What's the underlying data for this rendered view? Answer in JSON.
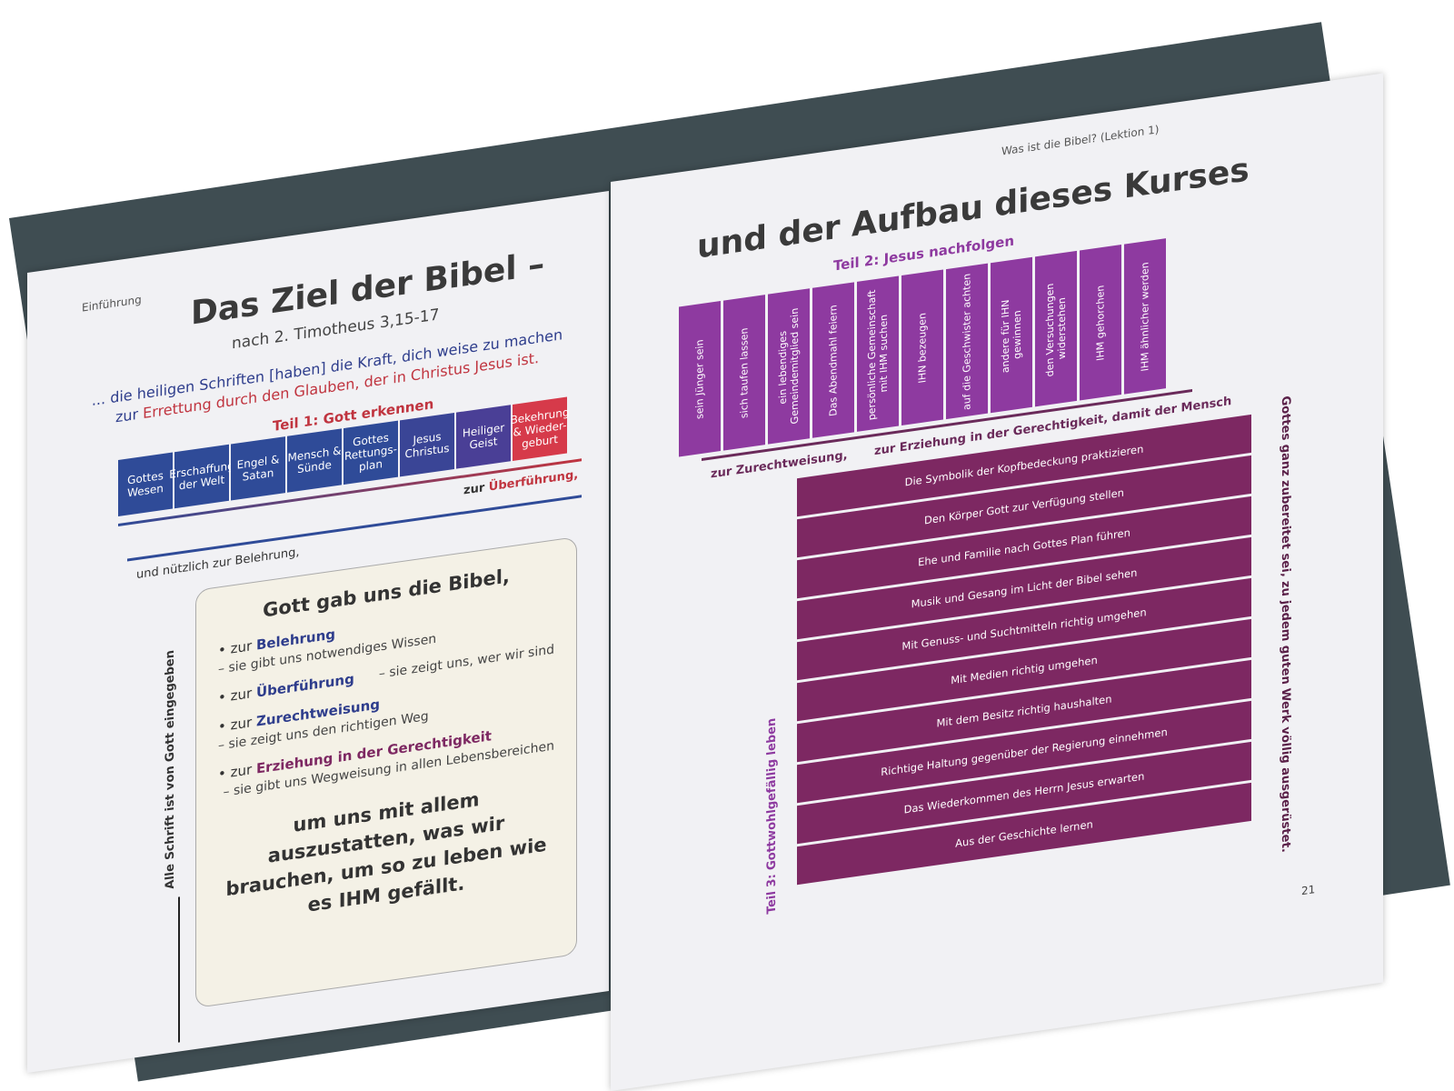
{
  "left_page": {
    "header": "Einführung",
    "title": "Das Ziel der Bibel –",
    "subtitle": "nach 2. Timotheus 3,15-17",
    "quote_line1": "... die heiligen Schriften [haben] die Kraft, dich weise zu machen",
    "quote_line2_prefix": "zur ",
    "quote_line2_red": "Errettung durch den Glauben, der in Christus Jesus ist.",
    "teil1": "Teil 1: Gott erkennen",
    "blocks": [
      "Gottes Wesen",
      "Erschaffung der Welt",
      "Engel & Satan",
      "Mensch & Sünde",
      "Gottes Rettungs-plan",
      "Jesus Christus",
      "Heiliger Geist",
      "Bekehrung & Wieder-geburt"
    ],
    "ueberfuehrung_prefix": "zur ",
    "ueberfuehrung": "Überführung,",
    "belehrung": "und nützlich zur Belehrung,",
    "vertical": "Alle Schrift ist von Gott eingegeben",
    "box": {
      "title": "Gott gab uns die Bibel,",
      "items": [
        {
          "prefix": "• zur ",
          "term": "Belehrung",
          "desc": "– sie gibt uns notwendiges Wissen"
        },
        {
          "prefix": "• zur ",
          "term": "Überführung",
          "desc": "– sie zeigt uns, wer wir sind"
        },
        {
          "prefix": "• zur ",
          "term": "Zurechtweisung",
          "desc": "– sie zeigt uns den richtigen Weg"
        },
        {
          "prefix": "• zur ",
          "term": "Erziehung in der Gerechtigkeit",
          "desc": "– sie gibt uns Wegweisung in allen Lebensbereichen"
        }
      ],
      "conclusion": "um uns mit allem auszustatten, was wir brauchen, um so zu leben wie es IHM gefällt."
    }
  },
  "right_page": {
    "header": "Was ist die Bibel? (Lektion 1)",
    "title": "und der Aufbau dieses Kurses",
    "teil2": "Teil 2: Jesus nachfolgen",
    "columns": [
      "sein Jünger sein",
      "sich taufen lassen",
      "ein lebendiges Gemeindemitglied sein",
      "Das Abendmahl feiern",
      "persönliche Gemeinschaft mit IHM suchen",
      "IHN bezeugen",
      "auf die Geschwister achten",
      "andere für IHN gewinnen",
      "den Versuchungen widerstehen",
      "IHM gehorchen",
      "IHM ähnlicher werden"
    ],
    "zurechtweisung": "zur Zurechtweisung,",
    "erziehung": "zur Erziehung in der Gerechtigkeit, damit der Mensch",
    "teil3": "Teil 3: Gottwohlgefällig leben",
    "rows": [
      "Die Symbolik der Kopfbedeckung praktizieren",
      "Den Körper Gott zur Verfügung stellen",
      "Ehe und Familie nach Gottes Plan führen",
      "Musik und Gesang im Licht der Bibel sehen",
      "Mit Genuss- und Suchtmitteln richtig umgehen",
      "Mit Medien richtig umgehen",
      "Mit dem Besitz richtig haushalten",
      "Richtige Haltung gegenüber der Regierung einnehmen",
      "Das Wiederkommen des Herrn Jesus erwarten",
      "Aus der Geschichte lernen"
    ],
    "vertical_right": "Gottes ganz zubereitet sei, zu jedem guten Werk völlig ausgerüstet.",
    "page_number": "21"
  },
  "colors": {
    "blue": "#2f4b98",
    "red": "#c0343f",
    "purple": "#8e3aa0",
    "plum": "#7d2862"
  }
}
